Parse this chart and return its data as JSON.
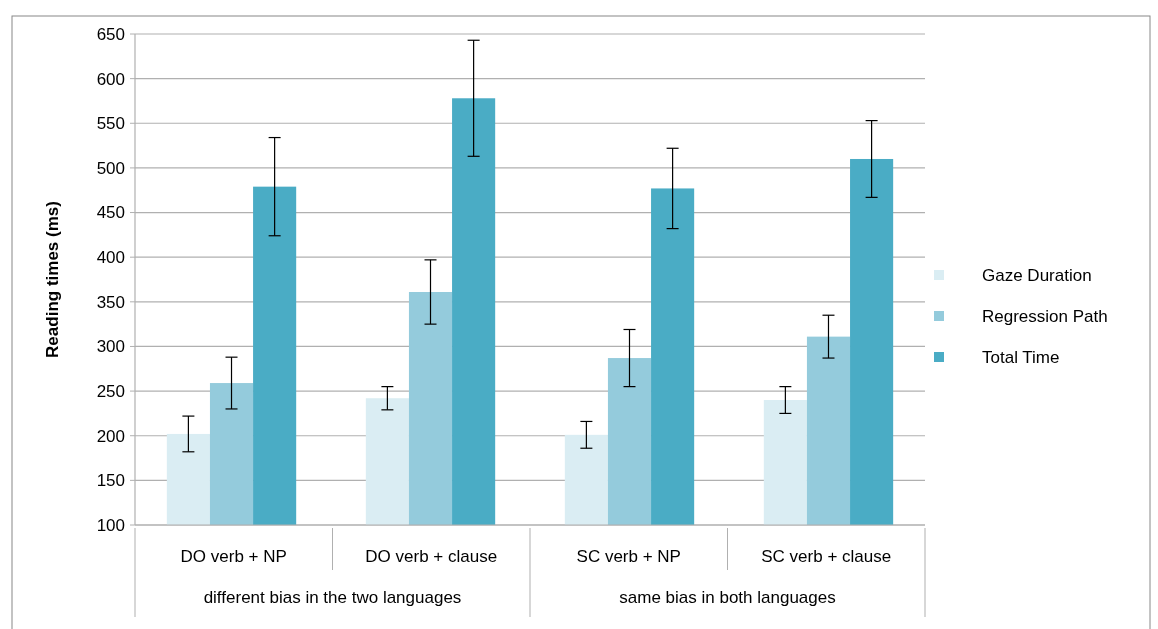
{
  "chart_data": {
    "type": "bar",
    "ylabel": "Reading times (ms)",
    "categories": [
      "DO verb + NP",
      "DO verb + clause",
      "SC verb + NP",
      "SC verb + clause"
    ],
    "series": [
      {
        "name": "Gaze Duration",
        "color": "#daedf3",
        "values": [
          202,
          242,
          201,
          240
        ],
        "errors": [
          20,
          13,
          15,
          15
        ]
      },
      {
        "name": "Regression Path",
        "color": "#94cbdc",
        "values": [
          259,
          361,
          287,
          311
        ],
        "errors": [
          29,
          36,
          32,
          24
        ]
      },
      {
        "name": "Total Time",
        "color": "#4aacc5",
        "values": [
          479,
          578,
          477,
          510
        ],
        "errors": [
          55,
          65,
          45,
          43
        ]
      }
    ],
    "ylim": [
      100,
      650
    ],
    "yticks": [
      100,
      150,
      200,
      250,
      300,
      350,
      400,
      450,
      500,
      550,
      600,
      650
    ],
    "grid": "y",
    "legend": "right",
    "annotations": [
      "different bias in the two languages",
      "same bias in both languages"
    ]
  }
}
